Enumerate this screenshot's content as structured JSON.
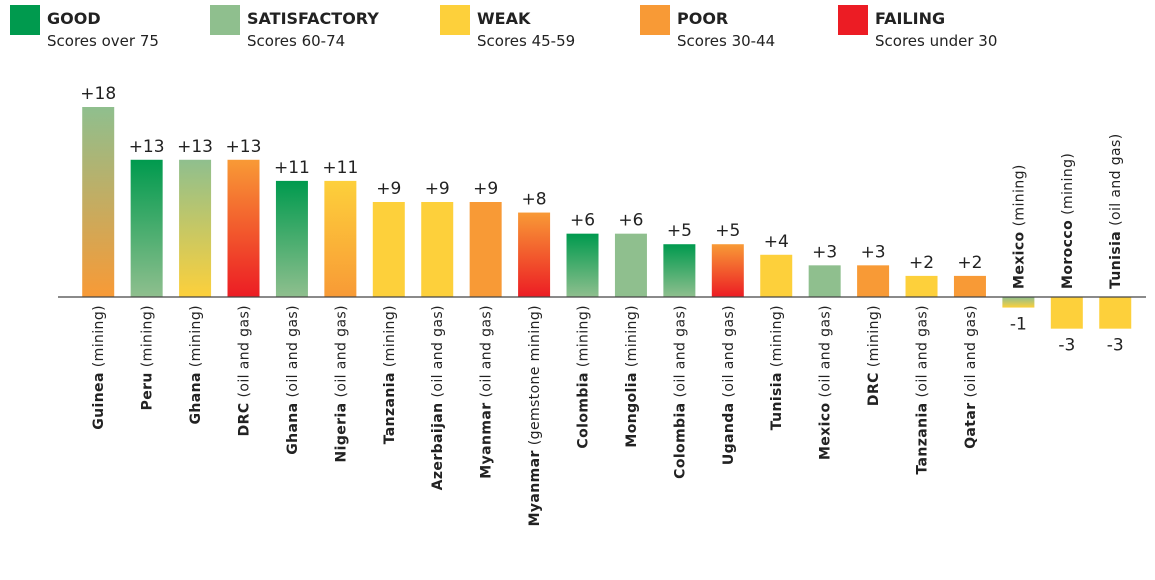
{
  "chart_data": {
    "type": "bar",
    "legend": [
      {
        "name": "GOOD",
        "description": "Scores over 75",
        "color": "#009a4e"
      },
      {
        "name": "SATISFACTORY",
        "description": "Scores 60-74",
        "color": "#8fbf8e"
      },
      {
        "name": "WEAK",
        "description": "Scores 45-59",
        "color": "#fdd03b"
      },
      {
        "name": "POOR",
        "description": "Scores 30-44",
        "color": "#f89a36"
      },
      {
        "name": "FAILING",
        "description": "Scores under 30",
        "color": "#ec1c24"
      }
    ],
    "categories": [
      "Guinea",
      "Peru",
      "Ghana",
      "DRC",
      "Ghana",
      "Nigeria",
      "Tanzania",
      "Azerbaijan",
      "Myanmar",
      "Myanmar",
      "Colombia",
      "Mongolia",
      "Colombia",
      "Uganda",
      "Tunisia",
      "Mexico",
      "DRC",
      "Tanzania",
      "Qatar",
      "Mexico",
      "Morocco",
      "Tunisia"
    ],
    "sectors": [
      "(mining)",
      "(mining)",
      "(mining)",
      "(oil and gas)",
      "(oil and gas)",
      "(oil and gas)",
      "(mining)",
      "(oil and gas)",
      "(oil and gas)",
      "(gemstone mining)",
      "(mining)",
      "(mining)",
      "(oil and gas)",
      "(oil and gas)",
      "(mining)",
      "(oil and gas)",
      "(mining)",
      "(oil and gas)",
      "(oil and gas)",
      "(mining)",
      "(mining)",
      "(oil and gas)"
    ],
    "values": [
      18,
      13,
      13,
      13,
      11,
      11,
      9,
      9,
      9,
      8,
      6,
      6,
      5,
      5,
      4,
      3,
      3,
      2,
      2,
      -1,
      -3,
      -3
    ],
    "value_labels": [
      "+18",
      "+13",
      "+13",
      "+13",
      "+11",
      "+11",
      "+9",
      "+9",
      "+9",
      "+8",
      "+6",
      "+6",
      "+5",
      "+5",
      "+4",
      "+3",
      "+3",
      "+2",
      "+2",
      "-1",
      "-3",
      "-3"
    ],
    "bar_colors": [
      [
        "#8fbf8e",
        "#f89a36"
      ],
      [
        "#009a4e",
        "#8fbf8e"
      ],
      [
        "#8fbf8e",
        "#fdd03b"
      ],
      [
        "#f89a36",
        "#ec1c24"
      ],
      [
        "#009a4e",
        "#8fbf8e"
      ],
      [
        "#fdd03b",
        "#f89a36"
      ],
      [
        "#fdd03b",
        "#fdd03b"
      ],
      [
        "#fdd03b",
        "#fdd03b"
      ],
      [
        "#f89a36",
        "#f89a36"
      ],
      [
        "#f89a36",
        "#ec1c24"
      ],
      [
        "#009a4e",
        "#8fbf8e"
      ],
      [
        "#8fbf8e",
        "#8fbf8e"
      ],
      [
        "#009a4e",
        "#8fbf8e"
      ],
      [
        "#f89a36",
        "#ec1c24"
      ],
      [
        "#fdd03b",
        "#fdd03b"
      ],
      [
        "#8fbf8e",
        "#8fbf8e"
      ],
      [
        "#f89a36",
        "#f89a36"
      ],
      [
        "#fdd03b",
        "#fdd03b"
      ],
      [
        "#f89a36",
        "#f89a36"
      ],
      [
        "#8fbf8e",
        "#fdd03b"
      ],
      [
        "#fdd03b",
        "#fdd03b"
      ],
      [
        "#fdd03b",
        "#fdd03b"
      ]
    ],
    "ylim": [
      -18,
      18
    ]
  }
}
